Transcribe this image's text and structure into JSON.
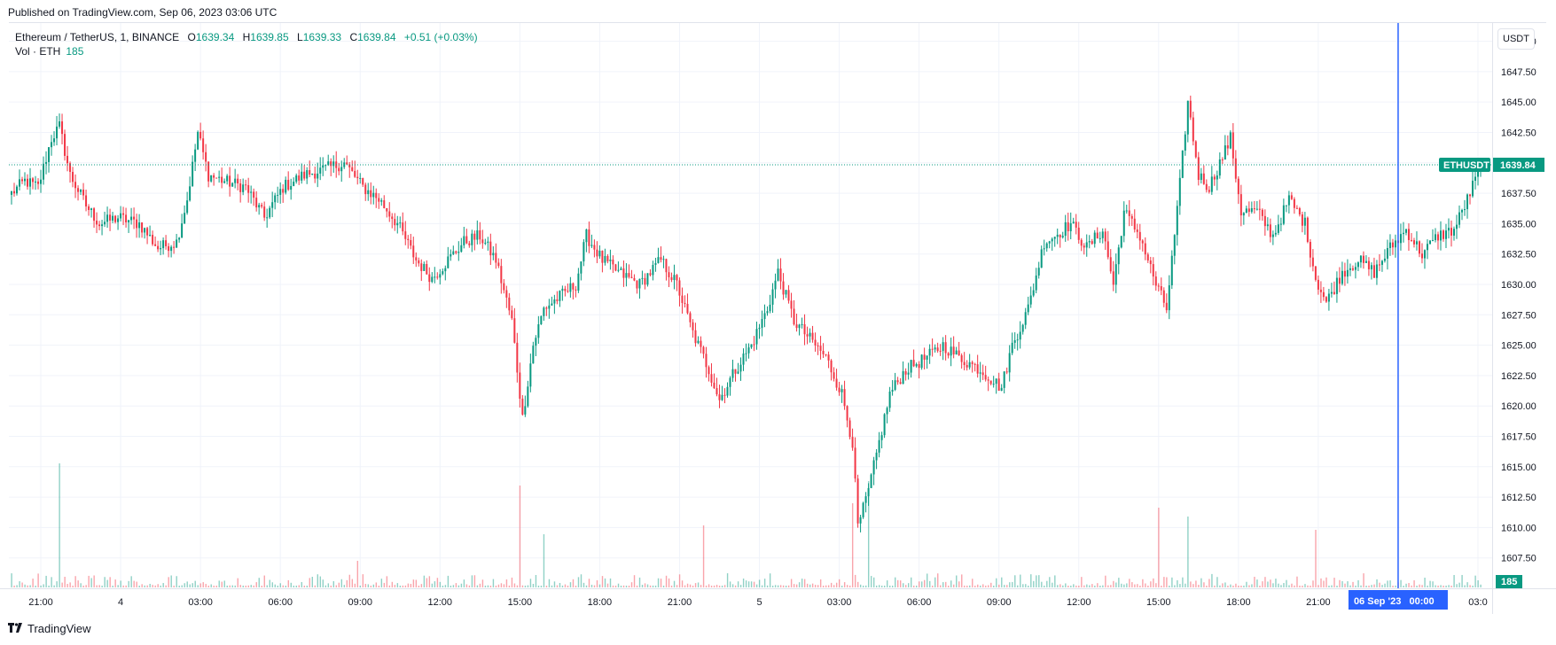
{
  "published": "Published on TradingView.com, Sep 06, 2023 03:06 UTC",
  "legend": {
    "symbol": "Ethereum / TetherUS, 1, BINANCE",
    "open_label": "O",
    "open": "1639.34",
    "high_label": "H",
    "high": "1639.85",
    "low_label": "L",
    "low": "1639.33",
    "close_label": "C",
    "close": "1639.84",
    "change": "+0.51 (+0.03%)"
  },
  "vol_legend": {
    "label": "Vol · ETH",
    "value": "185"
  },
  "unit_button": "USDT",
  "price_tag": {
    "symbol": "ETHUSDT",
    "value": "1639.84"
  },
  "vol_tag": "185",
  "crosshair_label": "06 Sep '23   00:00",
  "brand": "TradingView",
  "colors": {
    "up": "#089981",
    "down": "#f23645",
    "crosshair": "#2962ff",
    "grid": "#f0f3fa"
  },
  "chart_data": {
    "type": "candlestick",
    "ylim": [
      1605.0,
      1651.5
    ],
    "y_ticks": [
      "1650.00",
      "1647.50",
      "1645.00",
      "1642.50",
      "1640.00",
      "1637.50",
      "1635.00",
      "1632.50",
      "1630.00",
      "1627.50",
      "1625.00",
      "1622.50",
      "1620.00",
      "1617.50",
      "1615.00",
      "1612.50",
      "1610.00",
      "1607.50"
    ],
    "x_ticks": [
      {
        "label": "21:00",
        "idx": 11
      },
      {
        "label": "4",
        "idx": 41
      },
      {
        "label": "03:00",
        "idx": 71
      },
      {
        "label": "06:00",
        "idx": 101
      },
      {
        "label": "09:00",
        "idx": 131
      },
      {
        "label": "12:00",
        "idx": 161
      },
      {
        "label": "15:00",
        "idx": 191
      },
      {
        "label": "18:00",
        "idx": 221
      },
      {
        "label": "21:00",
        "idx": 251
      },
      {
        "label": "5",
        "idx": 281
      },
      {
        "label": "03:00",
        "idx": 311
      },
      {
        "label": "06:00",
        "idx": 341
      },
      {
        "label": "09:00",
        "idx": 371
      },
      {
        "label": "12:00",
        "idx": 401
      },
      {
        "label": "15:00",
        "idx": 431
      },
      {
        "label": "18:00",
        "idx": 461
      },
      {
        "label": "21:00",
        "idx": 491
      },
      {
        "label": "03:0",
        "idx": 551
      }
    ],
    "crosshair_idx": 521,
    "last_price": 1639.84,
    "anchors": [
      [
        0,
        1637.5
      ],
      [
        5,
        1638.5
      ],
      [
        10,
        1638
      ],
      [
        15,
        1642
      ],
      [
        18,
        1643
      ],
      [
        22,
        1639
      ],
      [
        28,
        1636.5
      ],
      [
        33,
        1635
      ],
      [
        40,
        1635.5
      ],
      [
        48,
        1635
      ],
      [
        55,
        1633
      ],
      [
        62,
        1633.5
      ],
      [
        66,
        1637
      ],
      [
        70,
        1642.5
      ],
      [
        74,
        1639
      ],
      [
        80,
        1638.5
      ],
      [
        88,
        1638
      ],
      [
        95,
        1635.5
      ],
      [
        102,
        1638
      ],
      [
        110,
        1639
      ],
      [
        118,
        1639.5
      ],
      [
        125,
        1640
      ],
      [
        132,
        1638
      ],
      [
        138,
        1637
      ],
      [
        145,
        1635
      ],
      [
        152,
        1632
      ],
      [
        158,
        1630.5
      ],
      [
        164,
        1632
      ],
      [
        170,
        1633.5
      ],
      [
        176,
        1634
      ],
      [
        182,
        1632
      ],
      [
        188,
        1627
      ],
      [
        192,
        1619
      ],
      [
        196,
        1625
      ],
      [
        200,
        1628
      ],
      [
        206,
        1629
      ],
      [
        212,
        1630
      ],
      [
        216,
        1634
      ],
      [
        222,
        1632
      ],
      [
        228,
        1631
      ],
      [
        236,
        1630
      ],
      [
        244,
        1632
      ],
      [
        250,
        1630
      ],
      [
        256,
        1626
      ],
      [
        262,
        1623
      ],
      [
        266,
        1620.5
      ],
      [
        272,
        1623
      ],
      [
        278,
        1625
      ],
      [
        284,
        1628
      ],
      [
        288,
        1631
      ],
      [
        294,
        1627
      ],
      [
        300,
        1625.5
      ],
      [
        306,
        1624
      ],
      [
        312,
        1621
      ],
      [
        316,
        1617
      ],
      [
        318,
        1610
      ],
      [
        322,
        1613
      ],
      [
        326,
        1617
      ],
      [
        330,
        1621
      ],
      [
        336,
        1623
      ],
      [
        344,
        1624
      ],
      [
        350,
        1625
      ],
      [
        356,
        1624
      ],
      [
        364,
        1623
      ],
      [
        372,
        1621.5
      ],
      [
        376,
        1625
      ],
      [
        382,
        1628
      ],
      [
        388,
        1633.5
      ],
      [
        392,
        1634
      ],
      [
        398,
        1635
      ],
      [
        404,
        1633
      ],
      [
        410,
        1634.5
      ],
      [
        414,
        1630
      ],
      [
        418,
        1636
      ],
      [
        424,
        1634
      ],
      [
        430,
        1630
      ],
      [
        434,
        1628
      ],
      [
        438,
        1636
      ],
      [
        442,
        1645
      ],
      [
        446,
        1639
      ],
      [
        450,
        1638
      ],
      [
        454,
        1640
      ],
      [
        458,
        1642
      ],
      [
        462,
        1636
      ],
      [
        468,
        1636
      ],
      [
        474,
        1634
      ],
      [
        480,
        1637
      ],
      [
        486,
        1635
      ],
      [
        490,
        1630.5
      ],
      [
        494,
        1628.5
      ],
      [
        500,
        1631
      ],
      [
        506,
        1632
      ],
      [
        512,
        1631
      ],
      [
        518,
        1633
      ],
      [
        524,
        1634.5
      ],
      [
        530,
        1632.5
      ],
      [
        536,
        1634
      ],
      [
        542,
        1634.5
      ],
      [
        548,
        1637.5
      ],
      [
        552,
        1639.84
      ]
    ]
  }
}
